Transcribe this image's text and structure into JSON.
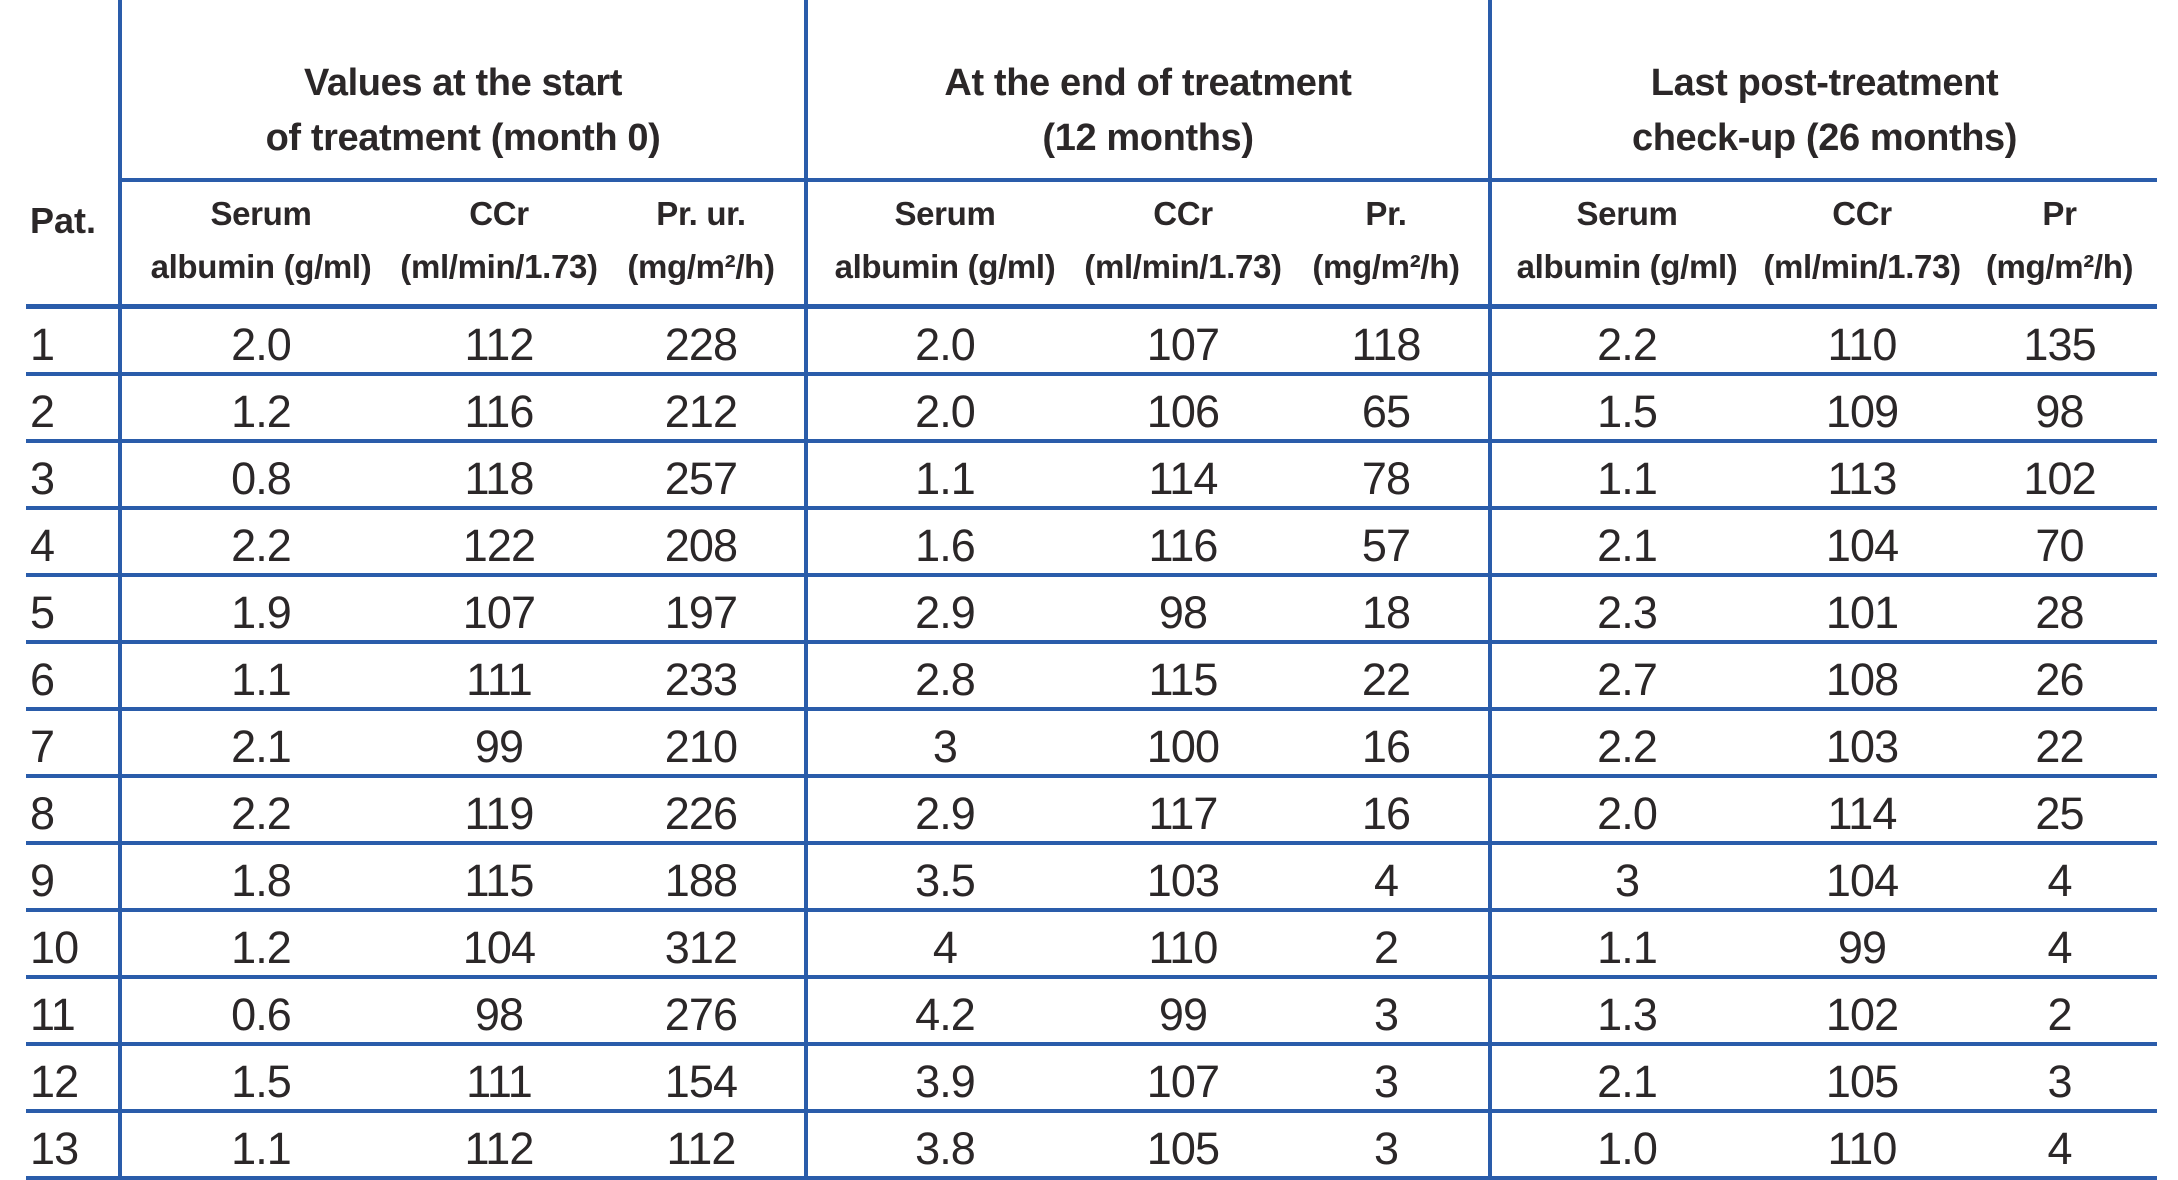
{
  "table": {
    "pat_header": "Pat.",
    "groups": [
      {
        "title_line1": "Values at the start",
        "title_line2": "of treatment (month 0)",
        "columns": [
          {
            "line1": "Serum",
            "line2": "albumin (g/ml)"
          },
          {
            "line1": "CCr",
            "line2": "(ml/min/1.73)"
          },
          {
            "line1": "Pr. ur.",
            "line2": "(mg/m²/h)"
          }
        ]
      },
      {
        "title_line1": "At the end of treatment",
        "title_line2": "(12 months)",
        "columns": [
          {
            "line1": "Serum",
            "line2": "albumin (g/ml)"
          },
          {
            "line1": "CCr",
            "line2": "(ml/min/1.73)"
          },
          {
            "line1": "Pr.",
            "line2": "(mg/m²/h)"
          }
        ]
      },
      {
        "title_line1": "Last post-treatment",
        "title_line2": "check-up (26 months)",
        "columns": [
          {
            "line1": "Serum",
            "line2": "albumin (g/ml)"
          },
          {
            "line1": "CCr",
            "line2": "(ml/min/1.73)"
          },
          {
            "line1": "Pr",
            "line2": "(mg/m²/h)"
          }
        ]
      }
    ],
    "rows": [
      {
        "pat": "1",
        "values": [
          "2.0",
          "112",
          "228",
          "2.0",
          "107",
          "118",
          "2.2",
          "110",
          "135"
        ]
      },
      {
        "pat": "2",
        "values": [
          "1.2",
          "116",
          "212",
          "2.0",
          "106",
          "65",
          "1.5",
          "109",
          "98"
        ]
      },
      {
        "pat": "3",
        "values": [
          "0.8",
          "118",
          "257",
          "1.1",
          "114",
          "78",
          "1.1",
          "113",
          "102"
        ]
      },
      {
        "pat": "4",
        "values": [
          "2.2",
          "122",
          "208",
          "1.6",
          "116",
          "57",
          "2.1",
          "104",
          "70"
        ]
      },
      {
        "pat": "5",
        "values": [
          "1.9",
          "107",
          "197",
          "2.9",
          "98",
          "18",
          "2.3",
          "101",
          "28"
        ]
      },
      {
        "pat": "6",
        "values": [
          "1.1",
          "111",
          "233",
          "2.8",
          "115",
          "22",
          "2.7",
          "108",
          "26"
        ]
      },
      {
        "pat": "7",
        "values": [
          "2.1",
          "99",
          "210",
          "3",
          "100",
          "16",
          "2.2",
          "103",
          "22"
        ]
      },
      {
        "pat": "8",
        "values": [
          "2.2",
          "119",
          "226",
          "2.9",
          "117",
          "16",
          "2.0",
          "114",
          "25"
        ]
      },
      {
        "pat": "9",
        "values": [
          "1.8",
          "115",
          "188",
          "3.5",
          "103",
          "4",
          "3",
          "104",
          "4"
        ]
      },
      {
        "pat": "10",
        "values": [
          "1.2",
          "104",
          "312",
          "4",
          "110",
          "2",
          "1.1",
          "99",
          "4"
        ]
      },
      {
        "pat": "11",
        "values": [
          "0.6",
          "98",
          "276",
          "4.2",
          "99",
          "3",
          "1.3",
          "102",
          "2"
        ]
      },
      {
        "pat": "12",
        "values": [
          "1.5",
          "111",
          "154",
          "3.9",
          "107",
          "3",
          "2.1",
          "105",
          "3"
        ]
      },
      {
        "pat": "13",
        "values": [
          "1.1",
          "112",
          "112",
          "3.8",
          "105",
          "3",
          "1.0",
          "110",
          "4"
        ]
      }
    ],
    "border_color": "#2a5caa",
    "text_color": "#2b2728"
  },
  "chart_data": {
    "type": "table",
    "row_header": "Pat.",
    "column_groups": [
      "Values at the start of treatment (month 0)",
      "At the end of treatment (12 months)",
      "Last post-treatment check-up (26 months)"
    ],
    "columns_per_group": [
      "Serum albumin (g/ml)",
      "CCr (ml/min/1.73)",
      "Pr (mg/m²/h)"
    ],
    "rows": [
      [
        1,
        2.0,
        112,
        228,
        2.0,
        107,
        118,
        2.2,
        110,
        135
      ],
      [
        2,
        1.2,
        116,
        212,
        2.0,
        106,
        65,
        1.5,
        109,
        98
      ],
      [
        3,
        0.8,
        118,
        257,
        1.1,
        114,
        78,
        1.1,
        113,
        102
      ],
      [
        4,
        2.2,
        122,
        208,
        1.6,
        116,
        57,
        2.1,
        104,
        70
      ],
      [
        5,
        1.9,
        107,
        197,
        2.9,
        98,
        18,
        2.3,
        101,
        28
      ],
      [
        6,
        1.1,
        111,
        233,
        2.8,
        115,
        22,
        2.7,
        108,
        26
      ],
      [
        7,
        2.1,
        99,
        210,
        3,
        100,
        16,
        2.2,
        103,
        22
      ],
      [
        8,
        2.2,
        119,
        226,
        2.9,
        117,
        16,
        2.0,
        114,
        25
      ],
      [
        9,
        1.8,
        115,
        188,
        3.5,
        103,
        4,
        3,
        104,
        4
      ],
      [
        10,
        1.2,
        104,
        312,
        4,
        110,
        2,
        1.1,
        99,
        4
      ],
      [
        11,
        0.6,
        98,
        276,
        4.2,
        99,
        3,
        1.3,
        102,
        2
      ],
      [
        12,
        1.5,
        111,
        154,
        3.9,
        107,
        3,
        2.1,
        105,
        3
      ],
      [
        13,
        1.1,
        112,
        112,
        3.8,
        105,
        3,
        1.0,
        110,
        4
      ]
    ]
  }
}
